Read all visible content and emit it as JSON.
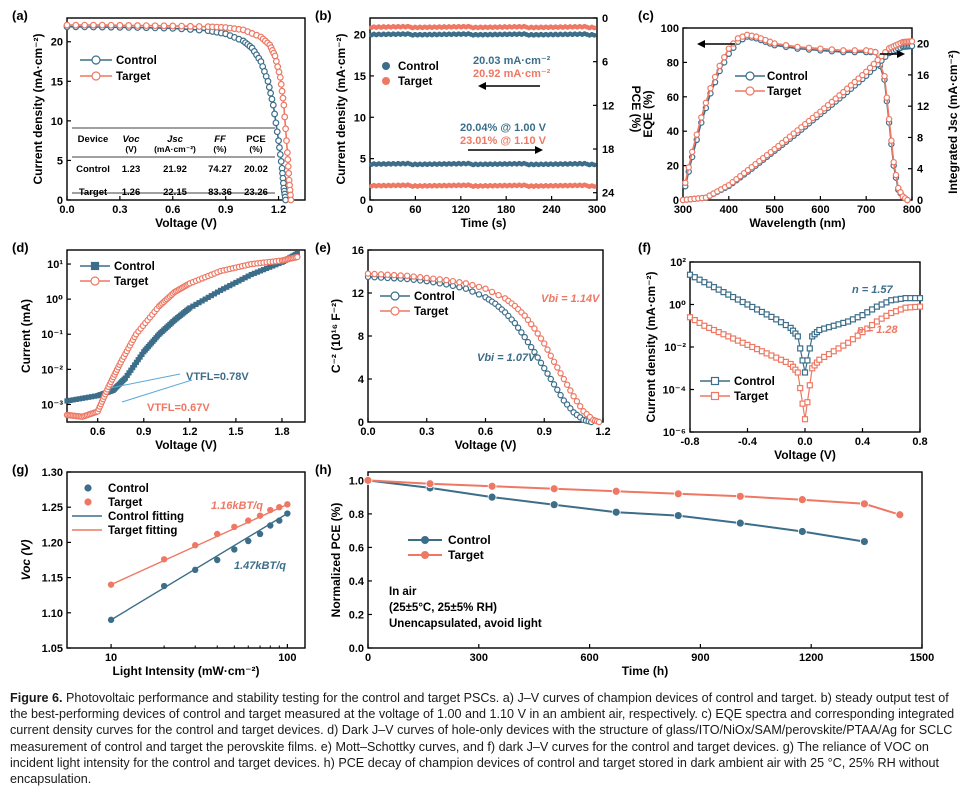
{
  "colors": {
    "control": "#3c6e8a",
    "target": "#ee7863",
    "line": "#000000"
  },
  "chart_data": [
    {
      "id": "a",
      "panel_label": "(a)",
      "type": "line",
      "xlabel": "Voltage (V)",
      "ylabel": "Current density (mA·cm⁻²)",
      "xlim": [
        0,
        1.35
      ],
      "ylim": [
        0,
        23
      ],
      "xticks": [
        "0.0",
        "0.3",
        "0.6",
        "0.9",
        "1.2"
      ],
      "yticks": [
        "0",
        "5",
        "10",
        "15",
        "20"
      ],
      "legend": [
        "Control",
        "Target"
      ],
      "series": [
        {
          "name": "Control",
          "x": [
            0,
            0.2,
            0.4,
            0.6,
            0.8,
            0.9,
            1.0,
            1.05,
            1.1,
            1.14,
            1.17,
            1.2,
            1.22,
            1.23,
            1.24
          ],
          "y": [
            21.9,
            21.85,
            21.8,
            21.7,
            21.4,
            21.0,
            20.1,
            19.2,
            17.5,
            15.0,
            12.0,
            7.5,
            4.0,
            1.5,
            0
          ]
        },
        {
          "name": "Target",
          "x": [
            0,
            0.2,
            0.4,
            0.6,
            0.8,
            0.9,
            1.0,
            1.1,
            1.15,
            1.18,
            1.21,
            1.23,
            1.25,
            1.26,
            1.27
          ],
          "y": [
            22.1,
            22.1,
            22.05,
            22.0,
            21.9,
            21.8,
            21.5,
            20.6,
            19.6,
            18.2,
            15.5,
            12.0,
            6.0,
            2.5,
            0
          ]
        }
      ],
      "table": {
        "headers": [
          [
            "Device",
            ""
          ],
          [
            "Voc",
            "(V)"
          ],
          [
            "Jsc",
            "(mA·cm⁻²)"
          ],
          [
            "FF",
            "(%)"
          ],
          [
            "PCE",
            "(%)"
          ]
        ],
        "rows": [
          [
            "Control",
            "1.23",
            "21.92",
            "74.27",
            "20.02"
          ],
          [
            "Target",
            "1.26",
            "22.15",
            "83.36",
            "23.26"
          ]
        ]
      }
    },
    {
      "id": "b",
      "panel_label": "(b)",
      "type": "scatter",
      "xlabel": "Time (s)",
      "ylabel": "Current density (mA·cm⁻²)",
      "ylabel_right": "PCE (%)",
      "xlim": [
        0,
        300
      ],
      "ylim": [
        0,
        22
      ],
      "ylim_right": [
        25,
        0
      ],
      "xticks": [
        "0",
        "60",
        "120",
        "180",
        "240",
        "300"
      ],
      "yticks": [
        "0",
        "5",
        "10",
        "15",
        "20"
      ],
      "yticks_right": [
        "0",
        "6",
        "12",
        "18",
        "24"
      ],
      "legend": [
        "Control",
        "Target"
      ],
      "annotations": [
        "20.03 mA·cm⁻²",
        "20.92 mA·cm⁻²",
        "20.04% @ 1.00 V",
        "23.01% @ 1.10 V"
      ],
      "series": [
        {
          "name": "Control J",
          "y": 20.03
        },
        {
          "name": "Target J",
          "y": 20.92
        },
        {
          "name": "Control PCE",
          "y": 20.04
        },
        {
          "name": "Target PCE",
          "y": 23.01
        }
      ]
    },
    {
      "id": "c",
      "panel_label": "(c)",
      "type": "line",
      "xlabel": "Wavelength (nm)",
      "ylabel": "EQE (%)",
      "ylabel_right": "Integrated Jsc (mA·cm⁻²)",
      "xlim": [
        300,
        800
      ],
      "ylim": [
        0,
        100
      ],
      "ylim_right": [
        0,
        22
      ],
      "xticks": [
        "300",
        "400",
        "500",
        "600",
        "700",
        "800"
      ],
      "yticks": [
        "0",
        "20",
        "40",
        "60",
        "80",
        "100"
      ],
      "yticks_right": [
        "0",
        "4",
        "8",
        "12",
        "16",
        "20"
      ],
      "legend": [
        "Control",
        "Target"
      ],
      "series": [
        {
          "name": "Control EQE",
          "x": [
            305,
            320,
            340,
            360,
            380,
            400,
            420,
            440,
            460,
            480,
            500,
            550,
            600,
            650,
            700,
            720,
            740,
            750,
            760,
            770,
            780,
            790
          ],
          "y": [
            8,
            25,
            45,
            62,
            75,
            85,
            92,
            95,
            94,
            92,
            90,
            88,
            87,
            86,
            86,
            86,
            70,
            45,
            20,
            6,
            2,
            0
          ]
        },
        {
          "name": "Target EQE",
          "x": [
            305,
            320,
            340,
            360,
            380,
            400,
            420,
            440,
            460,
            480,
            500,
            550,
            600,
            650,
            700,
            720,
            740,
            750,
            760,
            770,
            780,
            790
          ],
          "y": [
            10,
            28,
            48,
            65,
            78,
            88,
            94,
            96,
            95,
            93,
            91,
            89,
            88,
            87,
            87,
            86,
            72,
            47,
            22,
            7,
            2,
            0
          ]
        },
        {
          "name": "Control Jsc",
          "x": [
            300,
            350,
            400,
            450,
            500,
            550,
            600,
            650,
            700,
            750,
            780,
            800
          ],
          "y": [
            0,
            0.3,
            1.8,
            4.0,
            6.3,
            8.6,
            11.0,
            13.4,
            15.9,
            18.8,
            19.6,
            19.7
          ]
        },
        {
          "name": "Target Jsc",
          "x": [
            300,
            350,
            400,
            450,
            500,
            550,
            600,
            650,
            700,
            750,
            780,
            800
          ],
          "y": [
            0,
            0.3,
            1.9,
            4.2,
            6.5,
            8.9,
            11.3,
            13.8,
            16.4,
            19.4,
            20.2,
            20.3
          ]
        }
      ]
    },
    {
      "id": "d",
      "panel_label": "(d)",
      "type": "line",
      "xlabel": "Voltage (V)",
      "ylabel": "Current (mA)",
      "xlim": [
        0.4,
        1.95
      ],
      "ylim_log10": [
        -3.5,
        1.4
      ],
      "xticks": [
        "0.6",
        "0.9",
        "1.2",
        "1.5",
        "1.8"
      ],
      "yticks": [
        "10⁻³",
        "10⁻²",
        "10⁻¹",
        "10⁰",
        "10¹"
      ],
      "legend": [
        "Control",
        "Target"
      ],
      "annotations": [
        "VTFL=0.78V",
        "VTFL=0.67V"
      ],
      "series": [
        {
          "name": "Control",
          "x": [
            0.4,
            0.6,
            0.7,
            0.78,
            0.9,
            1.0,
            1.1,
            1.2,
            1.4,
            1.6,
            1.8,
            1.9
          ],
          "log10y": [
            -2.9,
            -2.75,
            -2.6,
            -2.25,
            -1.5,
            -1.0,
            -0.6,
            -0.25,
            0.25,
            0.7,
            1.05,
            1.3
          ]
        },
        {
          "name": "Target",
          "x": [
            0.4,
            0.5,
            0.6,
            0.67,
            0.75,
            0.85,
            1.0,
            1.1,
            1.2,
            1.4,
            1.6,
            1.8,
            1.9
          ],
          "log10y": [
            -3.3,
            -3.35,
            -3.2,
            -2.5,
            -1.8,
            -1.0,
            -0.2,
            0.2,
            0.45,
            0.8,
            1.0,
            1.1,
            1.2
          ]
        }
      ]
    },
    {
      "id": "e",
      "panel_label": "(e)",
      "type": "line",
      "xlabel": "Voltage (V)",
      "ylabel": "C⁻² (10¹⁶ F⁻²)",
      "xlim": [
        0,
        1.2
      ],
      "ylim": [
        0,
        16
      ],
      "xticks": [
        "0.0",
        "0.3",
        "0.6",
        "0.9",
        "1.2"
      ],
      "yticks": [
        "0",
        "4",
        "8",
        "12",
        "16"
      ],
      "legend": [
        "Control",
        "Target"
      ],
      "annotations": [
        "Vbi = 1.14V",
        "Vbi = 1.07V"
      ],
      "series": [
        {
          "name": "Control",
          "x": [
            0,
            0.1,
            0.2,
            0.3,
            0.4,
            0.5,
            0.6,
            0.65,
            0.7,
            0.75,
            0.8,
            0.85,
            0.9,
            0.95,
            1.0,
            1.05,
            1.1,
            1.14
          ],
          "y": [
            13.5,
            13.4,
            13.3,
            13.1,
            12.8,
            12.4,
            11.6,
            11.0,
            10.2,
            9.2,
            7.9,
            6.5,
            5.0,
            3.5,
            2.0,
            0.9,
            0.2,
            0
          ]
        },
        {
          "name": "Target",
          "x": [
            0,
            0.1,
            0.2,
            0.3,
            0.4,
            0.5,
            0.6,
            0.7,
            0.75,
            0.8,
            0.85,
            0.9,
            0.95,
            1.0,
            1.05,
            1.1,
            1.15,
            1.18
          ],
          "y": [
            13.8,
            13.7,
            13.6,
            13.4,
            13.2,
            12.9,
            12.4,
            11.5,
            10.8,
            9.9,
            8.7,
            7.3,
            5.6,
            4.0,
            2.4,
            1.0,
            0.2,
            0
          ]
        }
      ]
    },
    {
      "id": "f",
      "panel_label": "(f)",
      "type": "line",
      "xlabel": "Voltage (V)",
      "ylabel": "Current density (mA·cm⁻²)",
      "xlim": [
        -0.8,
        0.8
      ],
      "ylim_log10": [
        -6,
        2
      ],
      "xticks": [
        "-0.8",
        "-0.4",
        "0.0",
        "0.4",
        "0.8"
      ],
      "yticks": [
        "10⁻⁶",
        "10⁻⁴",
        "10⁻²",
        "10⁰",
        "10²"
      ],
      "legend": [
        "Control",
        "Target"
      ],
      "annotations": [
        "n = 1.57",
        "n = 1.28"
      ],
      "series": [
        {
          "name": "Control",
          "x": [
            -0.8,
            -0.7,
            -0.6,
            -0.5,
            -0.4,
            -0.3,
            -0.2,
            -0.1,
            -0.05,
            0,
            0.05,
            0.1,
            0.2,
            0.3,
            0.4,
            0.5,
            0.6,
            0.7,
            0.8
          ],
          "log10y": [
            1.4,
            1.05,
            0.7,
            0.35,
            0,
            -0.35,
            -0.7,
            -1.1,
            -1.5,
            -3.2,
            -1.5,
            -1.2,
            -1.0,
            -0.8,
            -0.5,
            -0.1,
            0.2,
            0.3,
            0.3
          ]
        },
        {
          "name": "Target",
          "x": [
            -0.8,
            -0.7,
            -0.6,
            -0.5,
            -0.4,
            -0.3,
            -0.2,
            -0.1,
            -0.05,
            0,
            0.05,
            0.1,
            0.2,
            0.3,
            0.4,
            0.5,
            0.6,
            0.7,
            0.8
          ],
          "log10y": [
            -0.6,
            -1.0,
            -1.3,
            -1.6,
            -1.9,
            -2.2,
            -2.5,
            -2.8,
            -3.2,
            -5.4,
            -3.0,
            -2.6,
            -2.2,
            -1.8,
            -1.3,
            -0.8,
            -0.4,
            -0.15,
            -0.1
          ]
        }
      ]
    },
    {
      "id": "g",
      "panel_label": "(g)",
      "type": "scatter",
      "xlabel": "Light Intensity (mW·cm⁻²)",
      "ylabel": "Voc (V)",
      "xlim_log10": [
        0.75,
        2.1
      ],
      "ylim": [
        1.05,
        1.3
      ],
      "xticks": [
        "10",
        "100"
      ],
      "yticks": [
        "1.05",
        "1.10",
        "1.15",
        "1.20",
        "1.25",
        "1.30"
      ],
      "legend": [
        "Control",
        "Target",
        "Control fitting",
        "Target fitting"
      ],
      "annotations": [
        "1.16kBT/q",
        "1.47kBT/q"
      ],
      "series": [
        {
          "name": "Control",
          "x": [
            10,
            20,
            30,
            40,
            50,
            60,
            70,
            80,
            90,
            100
          ],
          "y": [
            1.09,
            1.138,
            1.161,
            1.175,
            1.19,
            1.202,
            1.212,
            1.224,
            1.231,
            1.241
          ]
        },
        {
          "name": "Target",
          "x": [
            10,
            20,
            30,
            40,
            50,
            60,
            70,
            80,
            90,
            100
          ],
          "y": [
            1.14,
            1.176,
            1.196,
            1.212,
            1.222,
            1.231,
            1.238,
            1.246,
            1.25,
            1.254
          ]
        }
      ]
    },
    {
      "id": "h",
      "panel_label": "(h)",
      "type": "line",
      "xlabel": "Time (h)",
      "ylabel": "Normalized PCE (%)",
      "xlim": [
        0,
        1500
      ],
      "ylim": [
        0,
        1.05
      ],
      "xticks": [
        "0",
        "300",
        "600",
        "900",
        "1200",
        "1500"
      ],
      "yticks": [
        "0.0",
        "0.2",
        "0.4",
        "0.6",
        "0.8",
        "1.0"
      ],
      "legend": [
        "Control",
        "Target"
      ],
      "notes": [
        "In air",
        "(25±5°C, 25±5% RH)",
        "Unencapsulated, avoid light"
      ],
      "series": [
        {
          "name": "Control",
          "x": [
            0,
            168,
            336,
            504,
            672,
            840,
            1008,
            1176,
            1344
          ],
          "y": [
            1.0,
            0.955,
            0.9,
            0.855,
            0.81,
            0.79,
            0.745,
            0.695,
            0.635
          ]
        },
        {
          "name": "Target",
          "x": [
            0,
            168,
            336,
            504,
            672,
            840,
            1008,
            1176,
            1344,
            1440
          ],
          "y": [
            1.0,
            0.98,
            0.965,
            0.95,
            0.935,
            0.92,
            0.905,
            0.885,
            0.86,
            0.795
          ]
        }
      ]
    }
  ],
  "caption": {
    "label": "Figure 6.",
    "text": "Photovoltaic performance and stability testing for the control and target PSCs. a) J–V curves of champion devices of control and target. b) steady output test of the best-performing devices of control and target measured at the voltage of 1.00 and 1.10 V in an ambient air, respectively. c) EQE spectra and corresponding integrated current density curves for the control and target devices. d) Dark J–V curves of hole-only devices with the structure of glass/ITO/NiOx/SAM/perovskite/PTAA/Ag for SCLC measurement of control and target the perovskite films. e) Mott–Schottky curves, and f) dark J–V curves for the control and target devices. g) The reliance of VOC on incident light intensity for the control and target devices. h) PCE decay of champion devices of control and target stored in dark ambient air with 25 °C, 25% RH without encapsulation."
  }
}
